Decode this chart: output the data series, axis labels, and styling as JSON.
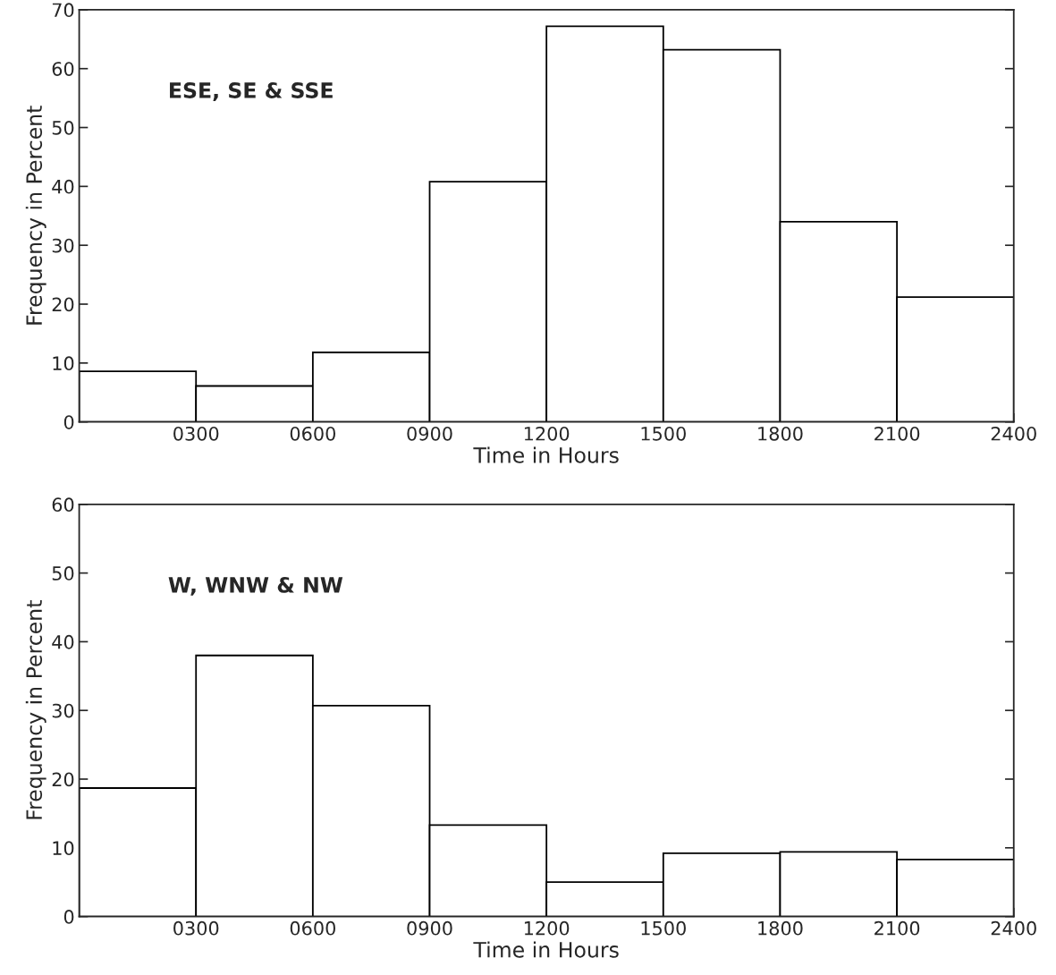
{
  "chart_data": [
    {
      "type": "histogram",
      "xlabel": "Time in Hours",
      "ylabel": "Frequency in Percent",
      "annotations": [
        "ESE, SE & SSE"
      ],
      "color": "#ffffff",
      "bins": [
        0,
        300,
        600,
        900,
        1200,
        1500,
        1800,
        2100,
        2400
      ],
      "values": [
        8.6,
        6.1,
        11.8,
        40.8,
        67.2,
        63.2,
        34.0,
        21.2
      ],
      "xlim": [
        0,
        2400
      ],
      "xticks": [
        {
          "value": 300,
          "label": "0300"
        },
        {
          "value": 600,
          "label": "0600"
        },
        {
          "value": 900,
          "label": "0900"
        },
        1200,
        1500,
        1800,
        2100,
        2400
      ],
      "ylim": [
        0,
        70
      ],
      "yticks": [
        0,
        10,
        20,
        30,
        40,
        50,
        60,
        70
      ],
      "grid": false
    },
    {
      "type": "histogram",
      "xlabel": "Time in Hours",
      "ylabel": "Frequency in Percent",
      "annotations": [
        "W, WNW & NW"
      ],
      "color": "#ffffff",
      "bins": [
        0,
        300,
        600,
        900,
        1200,
        1500,
        1800,
        2100,
        2400
      ],
      "values": [
        18.7,
        38.0,
        30.7,
        13.3,
        5.0,
        9.2,
        9.4,
        8.3
      ],
      "xlim": [
        0,
        2400
      ],
      "xticks": [
        {
          "value": 300,
          "label": "0300"
        },
        {
          "value": 600,
          "label": "0600"
        },
        {
          "value": 900,
          "label": "0900"
        },
        1200,
        1500,
        1800,
        2100,
        2400
      ],
      "ylim": [
        0,
        60
      ],
      "yticks": [
        0,
        10,
        20,
        30,
        40,
        50,
        60
      ],
      "grid": false
    }
  ]
}
